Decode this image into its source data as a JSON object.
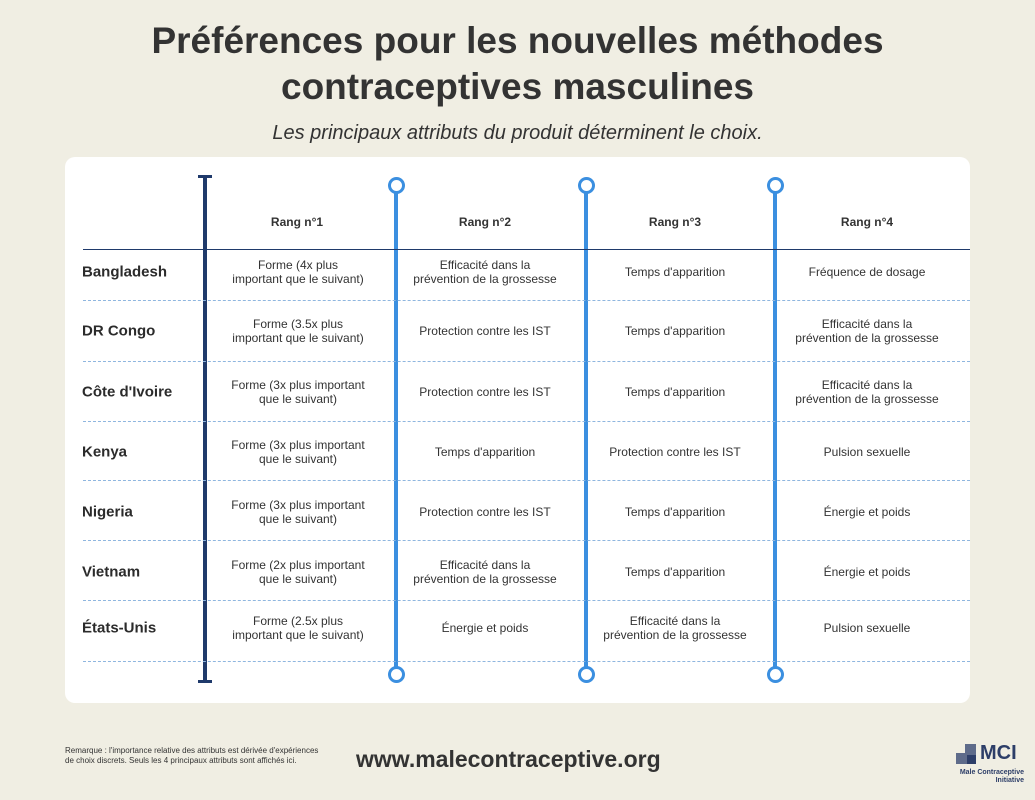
{
  "header": {
    "title_line1": "Préférences pour les nouvelles méthodes",
    "title_line2": "contraceptives masculines",
    "subtitle": "Les principaux attributs du produit déterminent le choix."
  },
  "table": {
    "columns": [
      "Rang n°1",
      "Rang n°2",
      "Rang n°3",
      "Rang n°4"
    ],
    "rows": [
      {
        "country": "Bangladesh",
        "cells": [
          [
            "Forme (4x plus",
            "important que le suivant)"
          ],
          [
            "Efficacité dans la",
            "prévention de la grossesse"
          ],
          [
            "Temps d'apparition"
          ],
          [
            "Fréquence de dosage"
          ]
        ]
      },
      {
        "country": "DR Congo",
        "cells": [
          [
            "Forme (3.5x plus",
            "important que le suivant)"
          ],
          [
            "Protection contre les IST"
          ],
          [
            "Temps d'apparition"
          ],
          [
            "Efficacité dans la",
            "prévention de la grossesse"
          ]
        ]
      },
      {
        "country": "Côte d'Ivoire",
        "cells": [
          [
            "Forme (3x plus important",
            "que le suivant)"
          ],
          [
            "Protection contre les IST"
          ],
          [
            "Temps d'apparition"
          ],
          [
            "Efficacité dans la",
            "prévention de la grossesse"
          ]
        ]
      },
      {
        "country": "Kenya",
        "cells": [
          [
            "Forme (3x plus important",
            "que le suivant)"
          ],
          [
            "Temps d'apparition"
          ],
          [
            "Protection contre les IST"
          ],
          [
            "Pulsion sexuelle"
          ]
        ]
      },
      {
        "country": "Nigeria",
        "cells": [
          [
            "Forme (3x plus important",
            "que le suivant)"
          ],
          [
            "Protection contre les IST"
          ],
          [
            "Temps d'apparition"
          ],
          [
            "Énergie et poids"
          ]
        ]
      },
      {
        "country": "Vietnam",
        "cells": [
          [
            "Forme (2x plus important",
            "que le suivant)"
          ],
          [
            "Efficacité dans la",
            "prévention de la grossesse"
          ],
          [
            "Temps d'apparition"
          ],
          [
            "Énergie et poids"
          ]
        ]
      },
      {
        "country": "États-Unis",
        "cells": [
          [
            "Forme (2.5x plus",
            "important que le suivant)"
          ],
          [
            "Énergie et poids"
          ],
          [
            "Efficacité dans la",
            "prévention de la grossesse"
          ],
          [
            "Pulsion sexuelle"
          ]
        ]
      }
    ]
  },
  "footer": {
    "note_line1": "Remarque : l'importance relative des attributs est dérivée d'expériences",
    "note_line2": "de choix discrets. Seuls les 4 principaux attributs sont affichés ici.",
    "website": "www.malecontraceptive.org",
    "logo_text": "MCI",
    "logo_sub_line1": "Male Contraceptive",
    "logo_sub_line2": "Initiative"
  },
  "colors": {
    "background": "#f0eee3",
    "card": "#ffffff",
    "dark_navy": "#1f3a6b",
    "accent_blue": "#3b8fe0"
  }
}
